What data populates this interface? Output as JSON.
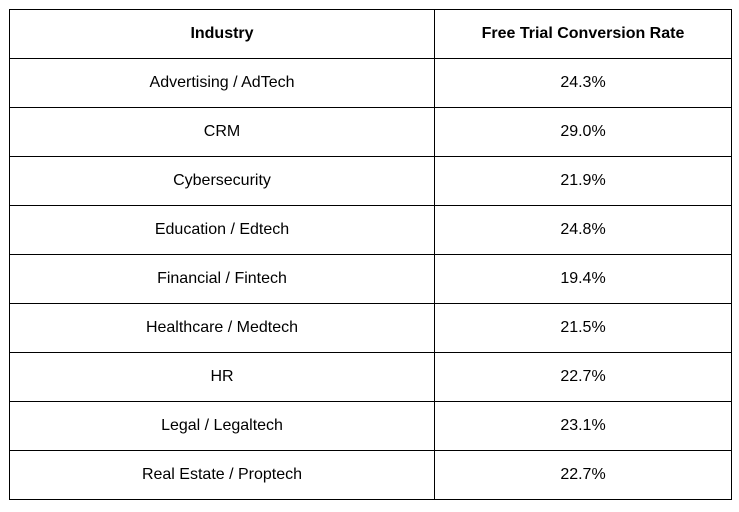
{
  "table": {
    "headers": [
      "Industry",
      "Free Trial Conversion Rate"
    ],
    "rows": [
      [
        "Advertising / AdTech",
        "24.3%"
      ],
      [
        "CRM",
        "29.0%"
      ],
      [
        "Cybersecurity",
        "21.9%"
      ],
      [
        "Education / Edtech",
        "24.8%"
      ],
      [
        "Financial / Fintech",
        "19.4%"
      ],
      [
        "Healthcare / Medtech",
        "21.5%"
      ],
      [
        "HR",
        "22.7%"
      ],
      [
        "Legal / Legaltech",
        "23.1%"
      ],
      [
        "Real Estate / Proptech",
        "22.7%"
      ]
    ]
  }
}
